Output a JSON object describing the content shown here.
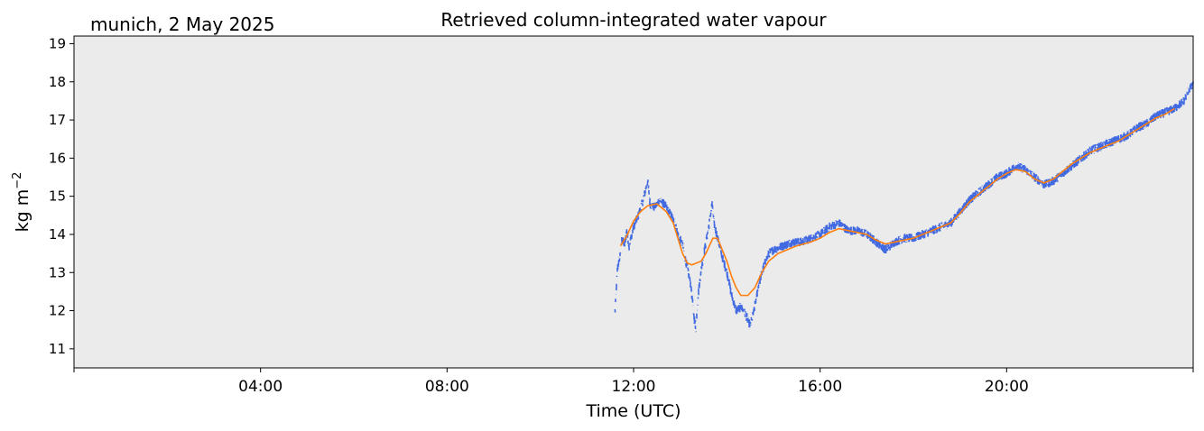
{
  "chart_data": {
    "type": "line",
    "title": "Retrieved column-integrated water vapour",
    "subtitle": "munich, 2 May 2025",
    "xlabel": "Time (UTC)",
    "ylabel_base": "kg m",
    "ylabel_sup": "−2",
    "x_unit": "hours UTC",
    "xlim": [
      0,
      24
    ],
    "ylim": [
      10.5,
      19.2
    ],
    "yticks": [
      11,
      12,
      13,
      14,
      15,
      16,
      17,
      18,
      19
    ],
    "xticks": [
      {
        "value": 0,
        "label": ""
      },
      {
        "value": 4,
        "label": "04:00"
      },
      {
        "value": 8,
        "label": "08:00"
      },
      {
        "value": 12,
        "label": "12:00"
      },
      {
        "value": 16,
        "label": "16:00"
      },
      {
        "value": 20,
        "label": "20:00"
      },
      {
        "value": 24,
        "label": ""
      }
    ],
    "grid": false,
    "background": "#ebebeb",
    "series": [
      {
        "role": "raw",
        "color": "#4169e1",
        "noise": 0.12,
        "points": [
          [
            11.6,
            12.0
          ],
          [
            11.62,
            12.4
          ],
          [
            11.65,
            13.1
          ],
          [
            11.7,
            13.4
          ],
          [
            11.75,
            13.9
          ],
          [
            11.8,
            13.7
          ],
          [
            11.85,
            14.1
          ],
          [
            11.9,
            13.7
          ],
          [
            12.0,
            14.2
          ],
          [
            12.1,
            14.5
          ],
          [
            12.2,
            14.9
          ],
          [
            12.3,
            15.4
          ],
          [
            12.35,
            14.8
          ],
          [
            12.45,
            14.7
          ],
          [
            12.55,
            14.9
          ],
          [
            12.65,
            14.8
          ],
          [
            12.75,
            14.6
          ],
          [
            12.85,
            14.4
          ],
          [
            12.95,
            14.0
          ],
          [
            13.05,
            13.7
          ],
          [
            13.15,
            13.1
          ],
          [
            13.22,
            12.7
          ],
          [
            13.28,
            12.0
          ],
          [
            13.33,
            11.5
          ],
          [
            13.38,
            12.4
          ],
          [
            13.45,
            13.1
          ],
          [
            13.55,
            13.8
          ],
          [
            13.62,
            14.3
          ],
          [
            13.68,
            14.8
          ],
          [
            13.72,
            14.3
          ],
          [
            13.8,
            13.9
          ],
          [
            13.9,
            13.4
          ],
          [
            14.0,
            13.0
          ],
          [
            14.1,
            12.4
          ],
          [
            14.2,
            12.0
          ],
          [
            14.3,
            12.1
          ],
          [
            14.4,
            11.9
          ],
          [
            14.5,
            11.6
          ],
          [
            14.58,
            12.0
          ],
          [
            14.68,
            12.7
          ],
          [
            14.8,
            13.2
          ],
          [
            14.9,
            13.5
          ],
          [
            15.0,
            13.6
          ],
          [
            15.2,
            13.7
          ],
          [
            15.4,
            13.8
          ],
          [
            15.6,
            13.8
          ],
          [
            15.8,
            13.9
          ],
          [
            16.0,
            14.0
          ],
          [
            16.2,
            14.2
          ],
          [
            16.4,
            14.3
          ],
          [
            16.6,
            14.1
          ],
          [
            16.8,
            14.1
          ],
          [
            17.0,
            14.0
          ],
          [
            17.2,
            13.8
          ],
          [
            17.4,
            13.6
          ],
          [
            17.6,
            13.8
          ],
          [
            17.8,
            13.9
          ],
          [
            18.0,
            13.9
          ],
          [
            18.2,
            14.0
          ],
          [
            18.4,
            14.1
          ],
          [
            18.6,
            14.2
          ],
          [
            18.8,
            14.3
          ],
          [
            19.0,
            14.6
          ],
          [
            19.2,
            14.9
          ],
          [
            19.4,
            15.1
          ],
          [
            19.6,
            15.3
          ],
          [
            19.8,
            15.5
          ],
          [
            20.0,
            15.6
          ],
          [
            20.2,
            15.8
          ],
          [
            20.4,
            15.7
          ],
          [
            20.6,
            15.5
          ],
          [
            20.8,
            15.3
          ],
          [
            21.0,
            15.4
          ],
          [
            21.2,
            15.6
          ],
          [
            21.4,
            15.8
          ],
          [
            21.6,
            16.0
          ],
          [
            21.8,
            16.2
          ],
          [
            22.0,
            16.3
          ],
          [
            22.2,
            16.4
          ],
          [
            22.4,
            16.5
          ],
          [
            22.6,
            16.6
          ],
          [
            22.8,
            16.8
          ],
          [
            23.0,
            16.9
          ],
          [
            23.2,
            17.1
          ],
          [
            23.4,
            17.2
          ],
          [
            23.6,
            17.3
          ],
          [
            23.8,
            17.5
          ],
          [
            23.9,
            17.8
          ],
          [
            24.0,
            17.9
          ]
        ]
      },
      {
        "role": "smoothed",
        "color": "#ff7f0e",
        "points": [
          [
            11.72,
            13.7
          ],
          [
            11.85,
            13.95
          ],
          [
            12.0,
            14.35
          ],
          [
            12.15,
            14.6
          ],
          [
            12.3,
            14.75
          ],
          [
            12.5,
            14.8
          ],
          [
            12.7,
            14.6
          ],
          [
            12.85,
            14.3
          ],
          [
            12.95,
            13.9
          ],
          [
            13.05,
            13.5
          ],
          [
            13.15,
            13.25
          ],
          [
            13.25,
            13.2
          ],
          [
            13.45,
            13.3
          ],
          [
            13.55,
            13.5
          ],
          [
            13.7,
            13.9
          ],
          [
            13.8,
            13.9
          ],
          [
            13.9,
            13.6
          ],
          [
            14.0,
            13.3
          ],
          [
            14.1,
            12.9
          ],
          [
            14.2,
            12.6
          ],
          [
            14.3,
            12.4
          ],
          [
            14.45,
            12.4
          ],
          [
            14.6,
            12.6
          ],
          [
            14.75,
            13.0
          ],
          [
            14.9,
            13.3
          ],
          [
            15.1,
            13.5
          ],
          [
            15.3,
            13.6
          ],
          [
            15.5,
            13.7
          ],
          [
            15.8,
            13.8
          ],
          [
            16.0,
            13.9
          ],
          [
            16.2,
            14.05
          ],
          [
            16.4,
            14.15
          ],
          [
            16.6,
            14.1
          ],
          [
            16.8,
            14.05
          ],
          [
            17.0,
            14.0
          ],
          [
            17.2,
            13.85
          ],
          [
            17.4,
            13.75
          ],
          [
            17.6,
            13.8
          ],
          [
            17.8,
            13.85
          ],
          [
            18.0,
            13.9
          ],
          [
            18.2,
            14.0
          ],
          [
            18.4,
            14.1
          ],
          [
            18.6,
            14.2
          ],
          [
            18.8,
            14.3
          ],
          [
            19.0,
            14.55
          ],
          [
            19.2,
            14.85
          ],
          [
            19.4,
            15.05
          ],
          [
            19.6,
            15.25
          ],
          [
            19.8,
            15.45
          ],
          [
            20.0,
            15.6
          ],
          [
            20.2,
            15.7
          ],
          [
            20.4,
            15.65
          ],
          [
            20.6,
            15.45
          ],
          [
            20.8,
            15.35
          ],
          [
            21.0,
            15.45
          ],
          [
            21.2,
            15.65
          ],
          [
            21.4,
            15.85
          ],
          [
            21.6,
            16.0
          ],
          [
            21.8,
            16.15
          ],
          [
            22.0,
            16.25
          ],
          [
            22.2,
            16.35
          ],
          [
            22.4,
            16.45
          ],
          [
            22.6,
            16.6
          ],
          [
            22.8,
            16.75
          ],
          [
            23.0,
            16.9
          ],
          [
            23.2,
            17.05
          ],
          [
            23.4,
            17.15
          ],
          [
            23.6,
            17.3
          ]
        ]
      }
    ]
  }
}
